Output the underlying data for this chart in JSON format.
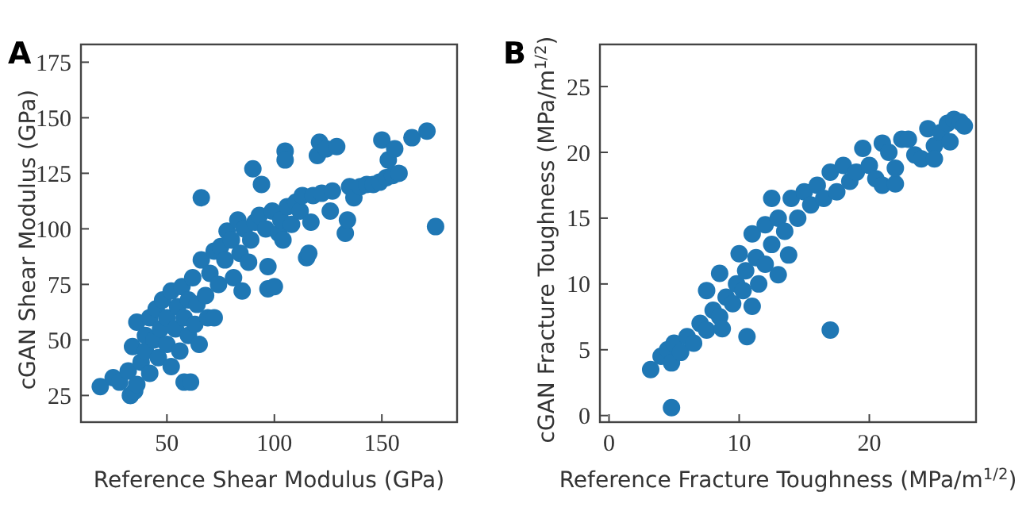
{
  "chart_data": [
    {
      "type": "scatter",
      "title": "A",
      "xlabel": "Reference Shear Modulus (GPa)",
      "ylabel": "cGAN Shear Modulus (GPa)",
      "xlim": [
        10,
        185
      ],
      "ylim": [
        13,
        183
      ],
      "xticks": [
        50,
        100,
        150
      ],
      "yticks": [
        25,
        50,
        75,
        100,
        125,
        150,
        175
      ],
      "grid": false,
      "marker": "circle",
      "series": [
        {
          "color": "#1f77b4",
          "x": [
            19,
            25,
            28,
            32,
            33,
            35,
            36,
            34,
            36,
            38,
            40,
            40,
            42,
            42,
            44,
            45,
            46,
            47,
            48,
            50,
            50,
            52,
            52,
            54,
            55,
            56,
            57,
            58,
            58,
            60,
            60,
            61,
            62,
            63,
            64,
            65,
            66,
            66,
            68,
            69,
            70,
            72,
            72,
            74,
            75,
            77,
            78,
            80,
            81,
            83,
            84,
            85,
            86,
            88,
            89,
            90,
            91,
            93,
            94,
            96,
            97,
            97,
            99,
            100,
            102,
            103,
            104,
            105,
            105,
            106,
            108,
            110,
            112,
            113,
            115,
            116,
            117,
            118,
            120,
            121,
            122,
            124,
            126,
            127,
            129,
            133,
            134,
            135,
            137,
            140,
            143,
            146,
            149,
            150,
            152,
            153,
            155,
            156,
            158,
            164,
            171,
            175
          ],
          "values": [
            29,
            33,
            31,
            36,
            25,
            27,
            30,
            47,
            58,
            40,
            45,
            52,
            35,
            60,
            50,
            64,
            42,
            55,
            68,
            48,
            60,
            72,
            38,
            55,
            65,
            45,
            74,
            60,
            31,
            52,
            68,
            31,
            78,
            57,
            66,
            48,
            114,
            86,
            70,
            60,
            80,
            90,
            60,
            75,
            92,
            86,
            99,
            95,
            78,
            104,
            89,
            72,
            100,
            85,
            95,
            127,
            103,
            106,
            120,
            100,
            83,
            73,
            108,
            74,
            98,
            104,
            95,
            135,
            131,
            110,
            102,
            112,
            108,
            115,
            87,
            89,
            103,
            115,
            133,
            139,
            116,
            136,
            108,
            117,
            137,
            98,
            104,
            119,
            114,
            119,
            120,
            120,
            121,
            140,
            123,
            131,
            124,
            136,
            125,
            141,
            144,
            101
          ]
        }
      ]
    },
    {
      "type": "scatter",
      "title": "B",
      "xlabel": "Reference Fracture Toughness (MPa/m$^{1/2}$)",
      "ylabel": "cGAN Fracture Toughness (MPa/m$^{1/2}$)",
      "xlim": [
        -0.7,
        28.2
      ],
      "ylim": [
        -0.5,
        28.2
      ],
      "xticks": [
        0,
        10,
        20
      ],
      "yticks": [
        0,
        5,
        10,
        15,
        20,
        25
      ],
      "grid": false,
      "marker": "circle",
      "series": [
        {
          "color": "#1f77b4",
          "x": [
            3.2,
            4,
            4.5,
            4.8,
            4.8,
            5,
            5.5,
            6,
            6.5,
            7,
            7.5,
            7.5,
            8,
            8.5,
            8.5,
            8.7,
            9,
            9.5,
            9.8,
            10,
            10.3,
            10.5,
            10.6,
            11,
            11,
            11.3,
            11.5,
            12,
            12,
            12.5,
            12.5,
            13,
            13,
            13.5,
            13.8,
            14,
            14.5,
            15,
            15.5,
            16,
            16.5,
            17,
            17,
            17.5,
            18,
            18.5,
            19,
            19.5,
            20,
            20.5,
            21,
            21,
            21.5,
            22,
            22,
            22.5,
            23,
            23.5,
            24,
            24.5,
            25,
            25,
            25.5,
            26,
            26.2,
            26.5,
            27,
            27.3
          ],
          "values": [
            3.5,
            4.5,
            5,
            0.6,
            4,
            5.5,
            4.8,
            6,
            5.5,
            7,
            6.5,
            9.5,
            8,
            7.5,
            10.8,
            6.6,
            9,
            8.5,
            10,
            12.3,
            9.5,
            11,
            6,
            8.3,
            13.8,
            12,
            10,
            14.5,
            11.5,
            16.5,
            13,
            10.7,
            15,
            14,
            12.2,
            16.5,
            15,
            17,
            16,
            17.5,
            16.5,
            18.5,
            6.5,
            17,
            19,
            17.8,
            18.5,
            20.3,
            19,
            18,
            17.5,
            20.7,
            20,
            17.6,
            18.8,
            21,
            21,
            19.8,
            19.5,
            21.8,
            20.5,
            19.5,
            21.5,
            22.2,
            20.8,
            22.5,
            22.3,
            22
          ]
        }
      ]
    }
  ]
}
